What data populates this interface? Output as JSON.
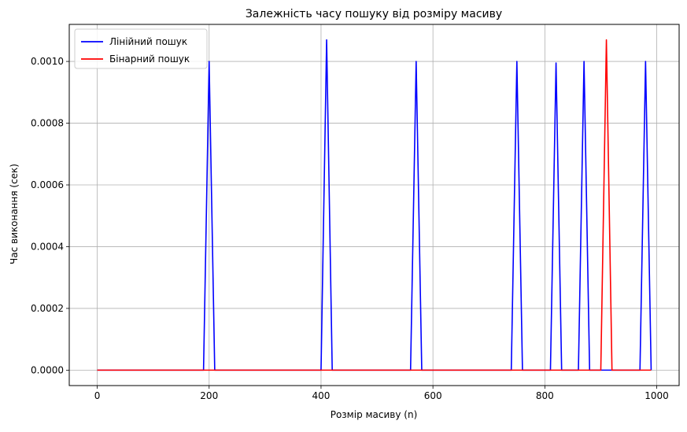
{
  "chart_data": {
    "type": "line",
    "title": "Залежність часу пошуку від розміру масиву",
    "xlabel": "Розмір масиву (n)",
    "ylabel": "Час виконання (сек)",
    "xlim": [
      -50,
      1040
    ],
    "ylim": [
      -5e-05,
      0.00112
    ],
    "xticks": [
      0,
      200,
      400,
      600,
      800,
      1000
    ],
    "yticks": [
      0.0,
      0.0002,
      0.0004,
      0.0006,
      0.0008,
      0.001
    ],
    "xtick_labels": [
      "0",
      "200",
      "400",
      "600",
      "800",
      "1000"
    ],
    "ytick_labels": [
      "0.0000",
      "0.0002",
      "0.0004",
      "0.0006",
      "0.0008",
      "0.0010"
    ],
    "grid": true,
    "legend_position": "top-left",
    "series": [
      {
        "name": "Лінійний пошук",
        "color": "#0000ff",
        "x": [
          0,
          190,
          200,
          210,
          400,
          410,
          420,
          560,
          570,
          580,
          740,
          750,
          760,
          810,
          820,
          830,
          860,
          870,
          880,
          970,
          980,
          990
        ],
        "y": [
          0,
          0,
          0.001,
          0,
          0,
          0.00107,
          0,
          0,
          0.001,
          0,
          0,
          0.001,
          0,
          0,
          0.000995,
          0,
          0,
          0.001,
          0,
          0,
          0.001,
          0
        ]
      },
      {
        "name": "Бінарний пошук",
        "color": "#ff0000",
        "x": [
          0,
          900,
          910,
          920,
          990
        ],
        "y": [
          0,
          0,
          0.00107,
          0,
          0
        ]
      }
    ]
  }
}
